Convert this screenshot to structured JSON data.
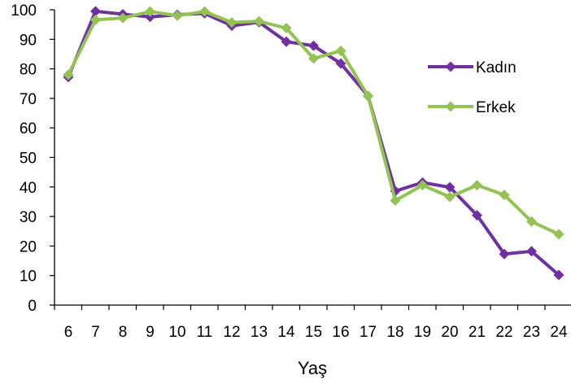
{
  "chart_data": {
    "type": "line",
    "x": [
      6,
      7,
      8,
      9,
      10,
      11,
      12,
      13,
      14,
      15,
      16,
      17,
      18,
      19,
      20,
      21,
      22,
      23,
      24
    ],
    "categories": [
      "6",
      "7",
      "8",
      "9",
      "10",
      "11",
      "12",
      "13",
      "14",
      "15",
      "16",
      "17",
      "18",
      "19",
      "20",
      "21",
      "22",
      "23",
      "24"
    ],
    "series": [
      {
        "name": "Kadın",
        "color": "#7030A0",
        "marker": "diamond",
        "values": [
          77.2,
          99.5,
          98.5,
          97.6,
          98.3,
          98.8,
          94.6,
          95.8,
          89.2,
          87.8,
          81.8,
          70.8,
          38.6,
          41.5,
          39.9,
          30.4,
          17.3,
          18.2,
          10.2
        ]
      },
      {
        "name": "Erkek",
        "color": "#92C353",
        "marker": "diamond",
        "values": [
          78.0,
          96.6,
          97.2,
          99.4,
          98.0,
          99.4,
          95.7,
          96.1,
          93.8,
          83.5,
          86.1,
          70.8,
          35.4,
          40.6,
          36.6,
          40.6,
          37.3,
          28.3,
          24.0
        ]
      }
    ],
    "xlabel": "Yaş",
    "ylabel": "",
    "ylim": [
      0,
      100
    ],
    "yticks": [
      "0",
      "10",
      "20",
      "30",
      "40",
      "50",
      "60",
      "70",
      "80",
      "90",
      "100"
    ],
    "grid": false,
    "legend_position": "right"
  }
}
